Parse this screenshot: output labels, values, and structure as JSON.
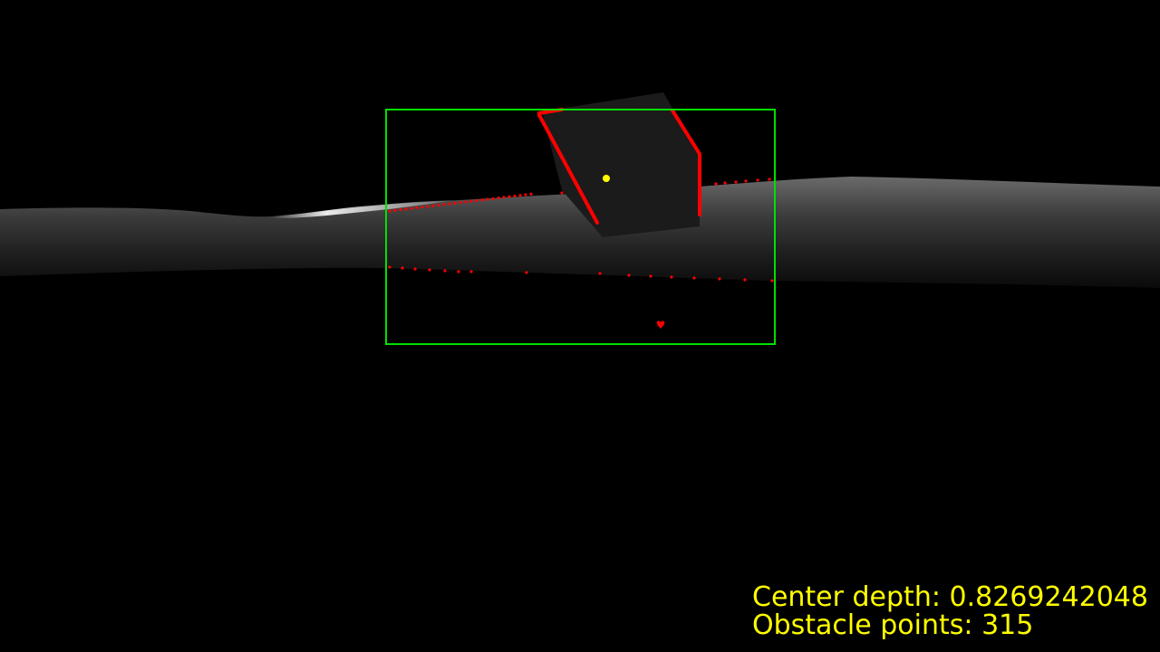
{
  "hud": {
    "center_depth_label": "Center depth:",
    "center_depth_value": "0.8269242048",
    "obstacle_points_label": "Obstacle points:",
    "obstacle_points_value": "315",
    "text_color": "#ffff00"
  },
  "colors": {
    "background": "#000000",
    "bounding_box": "#00e000",
    "obstacle_points": "#ff0000",
    "center_marker": "#ffff00",
    "depth_far": "#1a1a1a",
    "depth_near": "#e6e6e6"
  }
}
